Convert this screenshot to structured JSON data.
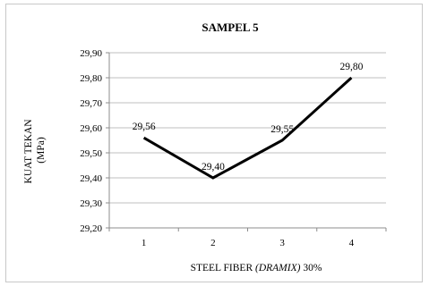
{
  "chart_data": {
    "type": "line",
    "title": "SAMPEL 5",
    "xlabel_main": "STEEL FIBER ",
    "xlabel_italic": "(DRAMIX)",
    "xlabel_suffix": " 30%",
    "ylabel_line1": "KUAT TEKAN",
    "ylabel_line2": "(MPa)",
    "categories": [
      "1",
      "2",
      "3",
      "4"
    ],
    "values": [
      29.56,
      29.4,
      29.55,
      29.8
    ],
    "data_labels": [
      "29,56",
      "29,40",
      "29,55",
      "29,80"
    ],
    "ylim": [
      29.2,
      29.9
    ],
    "yticks": [
      29.2,
      29.3,
      29.4,
      29.5,
      29.6,
      29.7,
      29.8,
      29.9
    ],
    "ytick_labels": [
      "29,20",
      "29,30",
      "29,40",
      "29,50",
      "29,60",
      "29,70",
      "29,80",
      "29,90"
    ],
    "grid": "horizontal",
    "line_color": "#000000",
    "grid_color": "#bfbfbf"
  }
}
